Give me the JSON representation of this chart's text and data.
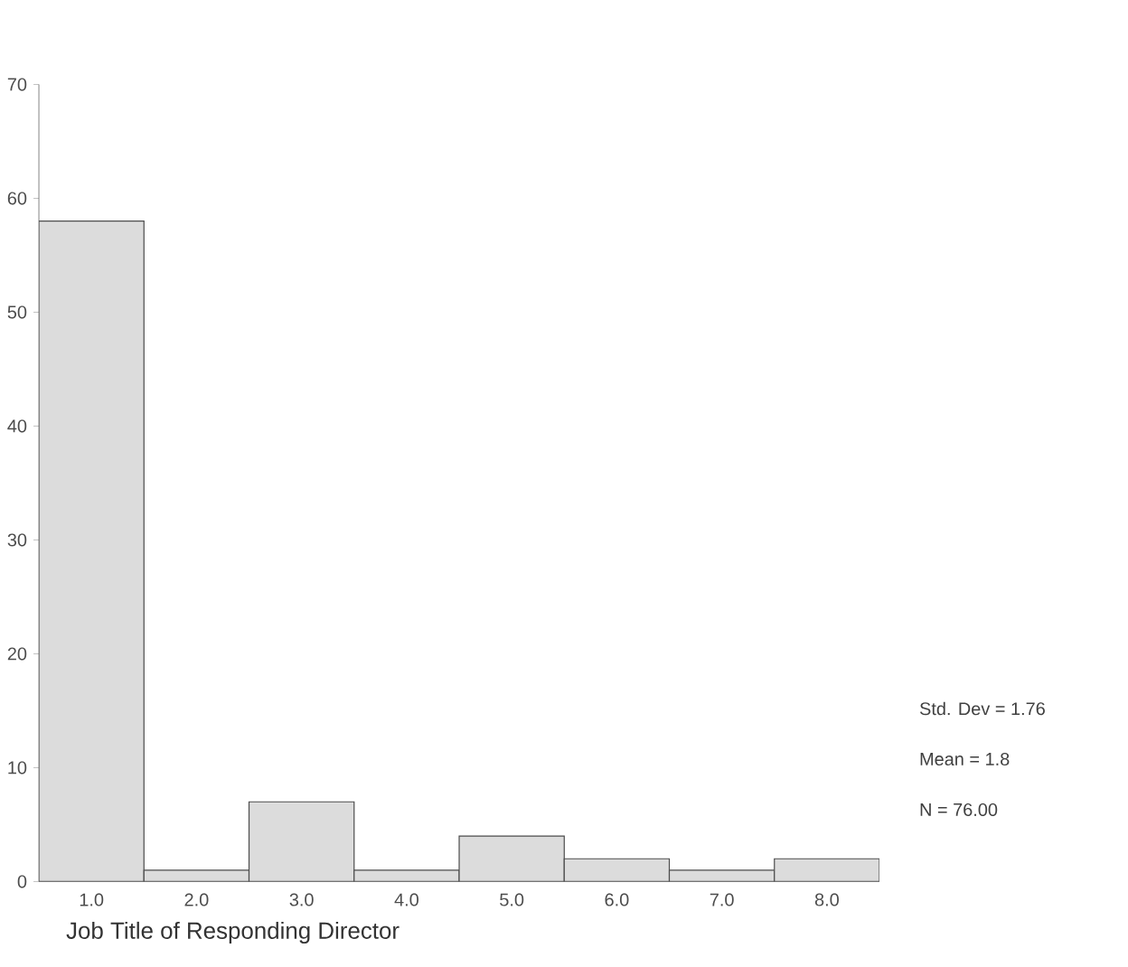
{
  "chart_data": {
    "type": "histogram",
    "xlabel": "Job Title of Responding Director",
    "bins": [
      0.5,
      1.5,
      2.5,
      3.5,
      4.5,
      5.5,
      6.5,
      7.5,
      8.5
    ],
    "values": [
      58,
      1,
      7,
      1,
      4,
      2,
      1,
      2
    ],
    "color": "#dcdcdc",
    "xlim": [
      0.5,
      8.5
    ],
    "xticks": [
      {
        "value": 1,
        "label": "1.0"
      },
      {
        "value": 2,
        "label": "2.0"
      },
      {
        "value": 3,
        "label": "3.0"
      },
      {
        "value": 4,
        "label": "4.0"
      },
      {
        "value": 5,
        "label": "5.0"
      },
      {
        "value": 6,
        "label": "6.0"
      },
      {
        "value": 7,
        "label": "7.0"
      },
      {
        "value": 8,
        "label": "8.0"
      }
    ],
    "ylim": [
      0,
      70
    ],
    "yticks": [
      0,
      10,
      20,
      30,
      40,
      50,
      60,
      70
    ],
    "annotations": [
      "Std. Dev = 1.76",
      "Mean = 1.8",
      "N = 76.00"
    ]
  }
}
